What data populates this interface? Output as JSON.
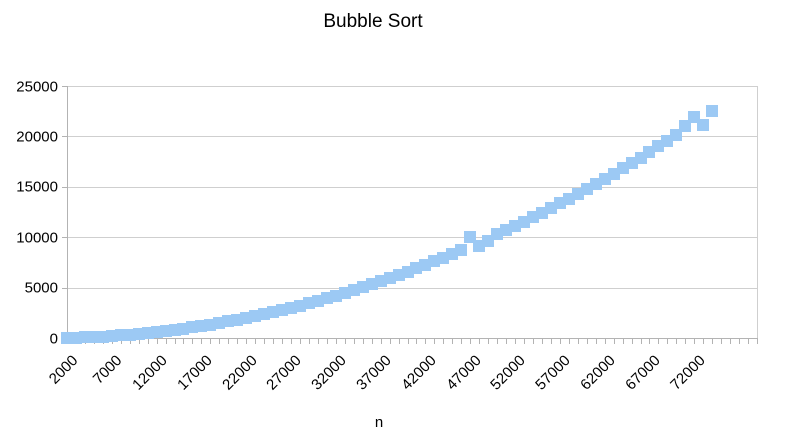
{
  "chart_data": {
    "type": "scatter",
    "title": "Bubble Sort",
    "xlabel": "n",
    "ylabel": "",
    "marker_shape": "square",
    "marker_color": "#9CC9F4",
    "gridline_color": "#CFCFCF",
    "axis_color": "#B3B3B3",
    "text_color": "#000000",
    "background_color": "#FFFFFF",
    "grid": "horizontal-only",
    "legend": "none",
    "ylim": [
      0,
      25000
    ],
    "y_ticks": [
      0,
      5000,
      10000,
      15000,
      20000,
      25000
    ],
    "y_tick_labels": [
      "0",
      "5000",
      "10000",
      "15000",
      "20000",
      "25000"
    ],
    "x_tick_labels": [
      "2000",
      "7000",
      "12000",
      "17000",
      "22000",
      "27000",
      "32000",
      "37000",
      "42000",
      "47000",
      "52000",
      "57000",
      "62000",
      "67000",
      "72000"
    ],
    "x_label_step": 5,
    "x_axis_slots": 78,
    "x": [
      2000,
      3000,
      4000,
      5000,
      6000,
      7000,
      8000,
      9000,
      10000,
      11000,
      12000,
      13000,
      14000,
      15000,
      16000,
      17000,
      18000,
      19000,
      20000,
      21000,
      22000,
      23000,
      24000,
      25000,
      26000,
      27000,
      28000,
      29000,
      30000,
      31000,
      32000,
      33000,
      34000,
      35000,
      36000,
      37000,
      38000,
      39000,
      40000,
      41000,
      42000,
      43000,
      44000,
      45000,
      46000,
      47000,
      48000,
      49000,
      50000,
      51000,
      52000,
      53000,
      54000,
      55000,
      56000,
      57000,
      58000,
      59000,
      60000,
      61000,
      62000,
      63000,
      64000,
      65000,
      66000,
      67000,
      68000,
      69000,
      70000,
      71000,
      72000,
      73000,
      74000
    ],
    "values": [
      16,
      37,
      66,
      103,
      148,
      201,
      263,
      333,
      411,
      497,
      592,
      694,
      805,
      925,
      1052,
      1188,
      1331,
      1483,
      1644,
      1812,
      1989,
      2174,
      2367,
      2568,
      2778,
      2995,
      3221,
      3456,
      3698,
      3948,
      4207,
      4474,
      4750,
      5033,
      5325,
      5625,
      5933,
      6250,
      6574,
      6907,
      7248,
      7597,
      7954,
      8320,
      8694,
      10000,
      9100,
      9600,
      10270,
      10687,
      11110,
      11542,
      11982,
      12430,
      12886,
      13350,
      13823,
      14304,
      14793,
      15290,
      15795,
      16309,
      16831,
      17361,
      17899,
      18445,
      19000,
      19563,
      20134,
      21000,
      21900,
      21100,
      22500
    ]
  }
}
